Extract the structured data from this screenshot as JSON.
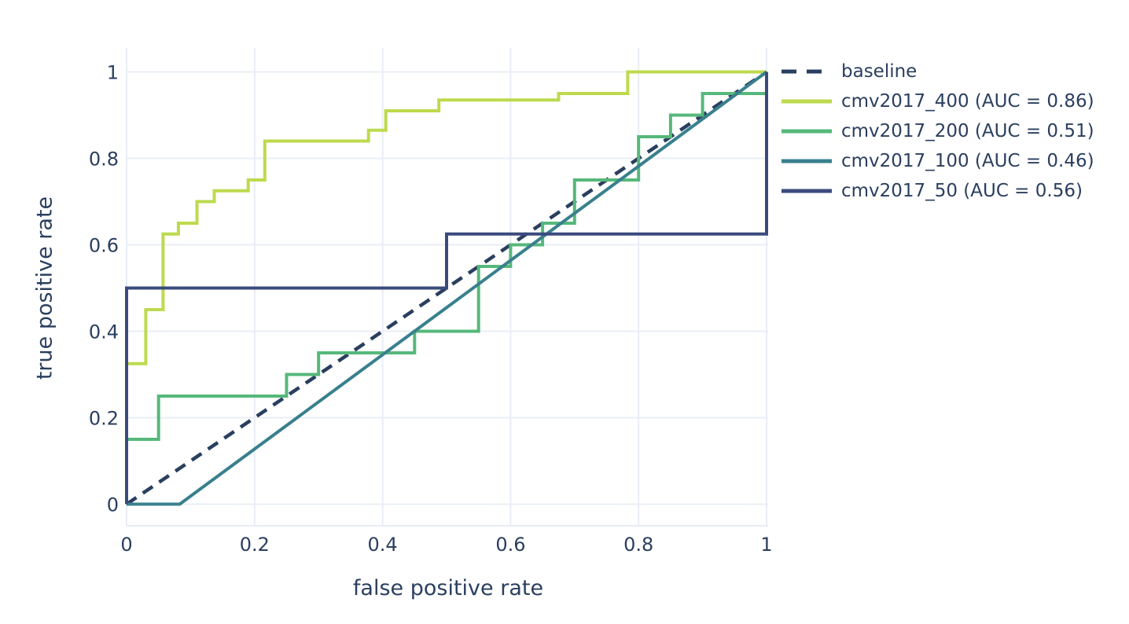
{
  "figure": {
    "x_axis_title": "false positive rate",
    "y_axis_title": "true positive rate"
  },
  "chart_data": {
    "type": "line",
    "subtype": "roc-curves-step",
    "title": "",
    "xlabel": "false positive rate",
    "ylabel": "true positive rate",
    "xlim": [
      0,
      1
    ],
    "ylim": [
      0,
      1
    ],
    "grid": true,
    "legend_position": "outside-top-right",
    "x_tick_values": [
      0,
      0.2,
      0.4,
      0.6,
      0.8,
      1
    ],
    "x_tick_labels": [
      "0",
      "0.2",
      "0.4",
      "0.6",
      "0.8",
      "1"
    ],
    "y_tick_values": [
      0,
      0.2,
      0.4,
      0.6,
      0.8,
      1
    ],
    "y_tick_labels": [
      "0",
      "0.2",
      "0.4",
      "0.6",
      "0.8",
      "1"
    ],
    "colors": {
      "text": "#2a3f5f",
      "grid": "#e9edf5",
      "axis_line": "#e6ebf3",
      "background": "#ffffff"
    },
    "series": [
      {
        "name": "baseline",
        "label": "baseline",
        "auc": null,
        "color": "#2a3f5f",
        "dash": true,
        "points": [
          [
            0,
            0
          ],
          [
            1,
            1
          ]
        ]
      },
      {
        "name": "cmv2017_400",
        "label": "cmv2017_400 (AUC = 0.86)",
        "auc": 0.86,
        "color": "#bdda4d",
        "dash": false,
        "points": [
          [
            0,
            0
          ],
          [
            0,
            0.325
          ],
          [
            0.03,
            0.325
          ],
          [
            0.03,
            0.45
          ],
          [
            0.057,
            0.45
          ],
          [
            0.057,
            0.625
          ],
          [
            0.081,
            0.625
          ],
          [
            0.081,
            0.65
          ],
          [
            0.11,
            0.65
          ],
          [
            0.11,
            0.7
          ],
          [
            0.137,
            0.7
          ],
          [
            0.137,
            0.725
          ],
          [
            0.19,
            0.725
          ],
          [
            0.19,
            0.75
          ],
          [
            0.216,
            0.75
          ],
          [
            0.216,
            0.84
          ],
          [
            0.378,
            0.84
          ],
          [
            0.378,
            0.865
          ],
          [
            0.405,
            0.865
          ],
          [
            0.405,
            0.91
          ],
          [
            0.488,
            0.91
          ],
          [
            0.488,
            0.935
          ],
          [
            0.675,
            0.935
          ],
          [
            0.675,
            0.95
          ],
          [
            0.783,
            0.95
          ],
          [
            0.783,
            1
          ],
          [
            1,
            1
          ]
        ]
      },
      {
        "name": "cmv2017_200",
        "label": "cmv2017_200 (AUC = 0.51)",
        "auc": 0.51,
        "color": "#56b87b",
        "dash": false,
        "points": [
          [
            0,
            0
          ],
          [
            0,
            0.15
          ],
          [
            0.05,
            0.15
          ],
          [
            0.05,
            0.25
          ],
          [
            0.25,
            0.25
          ],
          [
            0.25,
            0.3
          ],
          [
            0.3,
            0.3
          ],
          [
            0.3,
            0.35
          ],
          [
            0.45,
            0.35
          ],
          [
            0.45,
            0.4
          ],
          [
            0.55,
            0.4
          ],
          [
            0.55,
            0.55
          ],
          [
            0.6,
            0.55
          ],
          [
            0.6,
            0.6
          ],
          [
            0.65,
            0.6
          ],
          [
            0.65,
            0.65
          ],
          [
            0.7,
            0.65
          ],
          [
            0.7,
            0.75
          ],
          [
            0.8,
            0.75
          ],
          [
            0.8,
            0.85
          ],
          [
            0.85,
            0.85
          ],
          [
            0.85,
            0.9
          ],
          [
            0.9,
            0.9
          ],
          [
            0.9,
            0.95
          ],
          [
            1,
            0.95
          ],
          [
            1,
            1
          ]
        ]
      },
      {
        "name": "cmv2017_100",
        "label": "cmv2017_100 (AUC = 0.46)",
        "auc": 0.46,
        "color": "#39808d",
        "dash": false,
        "points": [
          [
            0,
            0
          ],
          [
            0.083,
            0
          ],
          [
            1,
            1
          ]
        ]
      },
      {
        "name": "cmv2017_50",
        "label": "cmv2017_50 (AUC = 0.56)",
        "auc": 0.56,
        "color": "#3b4b7d",
        "dash": false,
        "points": [
          [
            0,
            0
          ],
          [
            0,
            0.5
          ],
          [
            0.5,
            0.5
          ],
          [
            0.5,
            0.625
          ],
          [
            1,
            0.625
          ],
          [
            1,
            1
          ]
        ]
      }
    ]
  }
}
